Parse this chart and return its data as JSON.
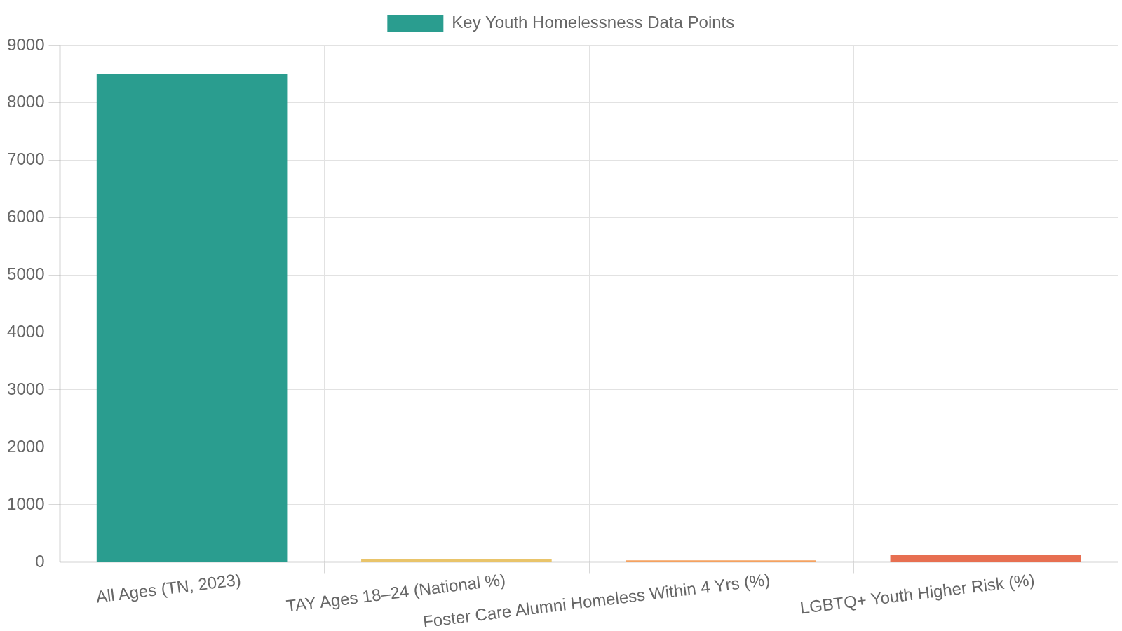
{
  "chart_data": {
    "type": "bar",
    "categories": [
      "All Ages (TN, 2023)",
      "TAY Ages 18–24 (National %)",
      "Foster Care Alumni Homeless Within 4 Yrs (%)",
      "LGBTQ+ Youth Higher Risk (%)"
    ],
    "series": [
      {
        "name": "Key Youth Homelessness Data Points",
        "colors": [
          "#2a9d8f",
          "#e9c46a",
          "#f4a261",
          "#e76f51"
        ],
        "values": [
          8500,
          40,
          20,
          120
        ]
      }
    ],
    "ylim": [
      0,
      9000
    ],
    "yticks": [
      0,
      1000,
      2000,
      3000,
      4000,
      5000,
      6000,
      7000,
      8000,
      9000
    ],
    "grid": true,
    "legend": "top"
  }
}
